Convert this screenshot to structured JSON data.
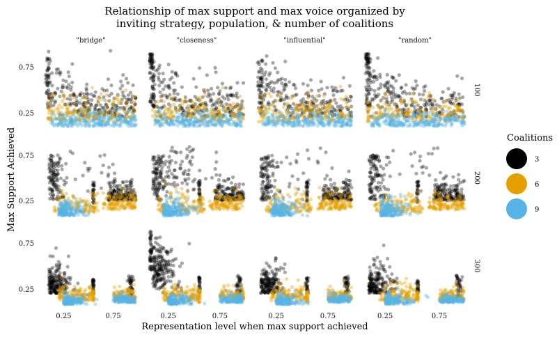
{
  "chart_data": {
    "type": "scatter",
    "title_line1": "Relationship of max support and max voice organized by",
    "title_line2": "inviting strategy, population, & number of coalitions",
    "xlabel": "Representation level when max support achieved",
    "ylabel": "Max Support Achieved",
    "columns": [
      "\"bridge\"",
      "\"closeness\"",
      "\"influential\"",
      "\"random\""
    ],
    "rows": [
      "100",
      "200",
      "300"
    ],
    "xlim": [
      0.05,
      1.0
    ],
    "ylim": [
      0.05,
      0.95
    ],
    "xticks": [
      0.25,
      0.75
    ],
    "xtick_labels": [
      "0.25",
      "0.75"
    ],
    "yticks": [
      0.25,
      0.75
    ],
    "ytick_labels": [
      "0.25",
      "0.75"
    ],
    "legend": {
      "title": "Coalitions",
      "position": "right",
      "entries": [
        {
          "label": "3",
          "color": "#000000"
        },
        {
          "label": "6",
          "color": "#E69F00"
        },
        {
          "label": "9",
          "color": "#56B4E9"
        }
      ]
    },
    "series": [
      {
        "name": "3",
        "color": "#000000",
        "summary": "spread widely; x 0.05-1.0, y 0.15-0.9; vertical streaks near x 0.05 and x 0.95"
      },
      {
        "name": "6",
        "color": "#E69F00",
        "summary": "concentrated y 0.1-0.45; clusters at x 0.1-0.5 and x 0.7-1.0"
      },
      {
        "name": "9",
        "color": "#56B4E9",
        "summary": "concentrated y 0.05-0.25; dense bands across x 0.1-1.0"
      }
    ]
  }
}
